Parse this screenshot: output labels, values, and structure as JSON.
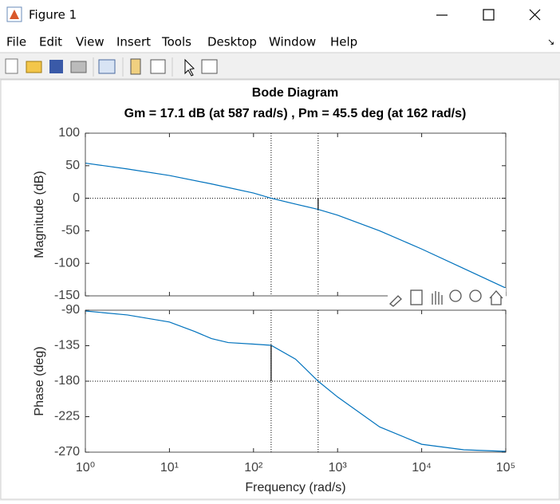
{
  "window": {
    "title": "Figure 1",
    "menus": [
      "File",
      "Edit",
      "View",
      "Insert",
      "Tools",
      "Desktop",
      "Window",
      "Help"
    ]
  },
  "chart_data": [
    {
      "type": "line",
      "title": "Bode Diagram",
      "subtitle": "Gm = 17.1 dB (at 587 rad/s) ,  Pm = 45.5 deg (at 162 rad/s)",
      "ylabel": "Magnitude (dB)",
      "xscale": "log",
      "x": [
        1,
        3.16,
        10,
        31.6,
        100,
        162,
        316,
        587,
        1000,
        3162,
        10000,
        31623,
        100000
      ],
      "series": [
        {
          "color": "#0072bd",
          "values": [
            54,
            45,
            35,
            22,
            8,
            0,
            -9,
            -17.1,
            -26,
            -50,
            -78,
            -108,
            -138
          ]
        }
      ],
      "xlim": [
        1,
        100000
      ],
      "xticks": [
        1,
        10,
        100,
        1000,
        10000,
        100000
      ],
      "ylim": [
        -150,
        100
      ],
      "yticks": [
        100,
        50,
        0,
        -50,
        -100,
        -150
      ],
      "reference_y": 0,
      "vlines": [
        162,
        587
      ],
      "margin": {
        "x": 587,
        "from": 0,
        "to": -17.1
      }
    },
    {
      "type": "line",
      "ylabel": "Phase (deg)",
      "xlabel": "Frequency  (rad/s)",
      "xscale": "log",
      "x": [
        1,
        3.16,
        10,
        20,
        31.6,
        50,
        100,
        162,
        316,
        587,
        1000,
        3162,
        10000,
        31623,
        100000
      ],
      "series": [
        {
          "color": "#0072bd",
          "values": [
            -91,
            -96,
            -105,
            -117,
            -126,
            -131,
            -133,
            -134.5,
            -152,
            -180,
            -200,
            -238,
            -260,
            -267,
            -269
          ]
        }
      ],
      "xlim": [
        1,
        100000
      ],
      "xticks": [
        {
          "value": 1,
          "label": "10⁰"
        },
        {
          "value": 10,
          "label": "10¹"
        },
        {
          "value": 100,
          "label": "10²"
        },
        {
          "value": 1000,
          "label": "10³"
        },
        {
          "value": 10000,
          "label": "10⁴"
        },
        {
          "value": 100000,
          "label": "10⁵"
        }
      ],
      "ylim": [
        -270,
        -90
      ],
      "yticks": [
        -90,
        -135,
        -180,
        -225,
        -270
      ],
      "reference_y": -180,
      "vlines": [
        162,
        587
      ],
      "margin": {
        "x": 162,
        "from": -180,
        "to": -134.5
      }
    }
  ]
}
